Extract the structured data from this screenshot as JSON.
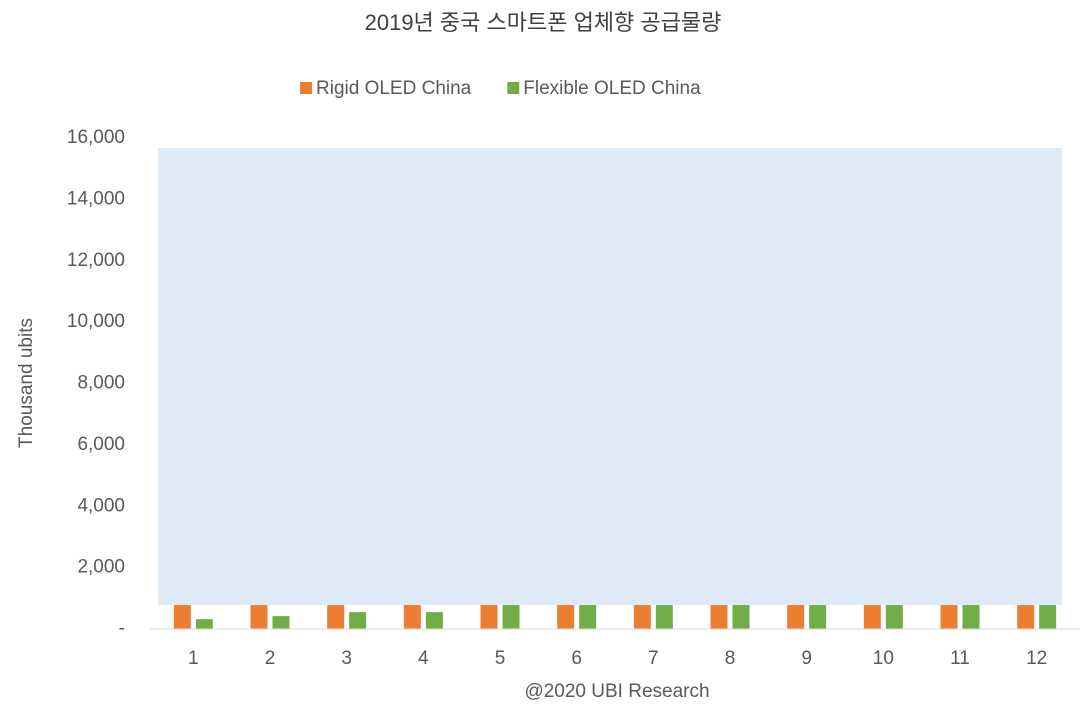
{
  "chart_data": {
    "type": "bar",
    "title": "2019년 중국 스마트폰 업체향 공급물량",
    "y_label": "Thousand ubits",
    "x_label": "@2020 UBI Research",
    "categories": [
      "1",
      "2",
      "3",
      "4",
      "5",
      "6",
      "7",
      "8",
      "9",
      "10",
      "11",
      "12"
    ],
    "series": [
      {
        "name": "Rigid OLED China",
        "color": "#ed7d31",
        "values": [
          780,
          780,
          780,
          780,
          780,
          780,
          780,
          780,
          780,
          780,
          780,
          780
        ]
      },
      {
        "name": "Flexible OLED China",
        "color": "#70ad47",
        "values": [
          320,
          420,
          550,
          550,
          780,
          780,
          780,
          780,
          780,
          780,
          780,
          780
        ]
      }
    ],
    "ylim": [
      0,
      16000
    ],
    "yticks": [
      {
        "value": 0,
        "label": "-"
      },
      {
        "value": 2000,
        "label": "2,000"
      },
      {
        "value": 4000,
        "label": "4,000"
      },
      {
        "value": 6000,
        "label": "6,000"
      },
      {
        "value": 8000,
        "label": "8,000"
      },
      {
        "value": 10000,
        "label": "10,000"
      },
      {
        "value": 12000,
        "label": "12,000"
      },
      {
        "value": 14000,
        "label": "14,000"
      },
      {
        "value": 16000,
        "label": "16,000"
      }
    ],
    "legend": "top"
  }
}
